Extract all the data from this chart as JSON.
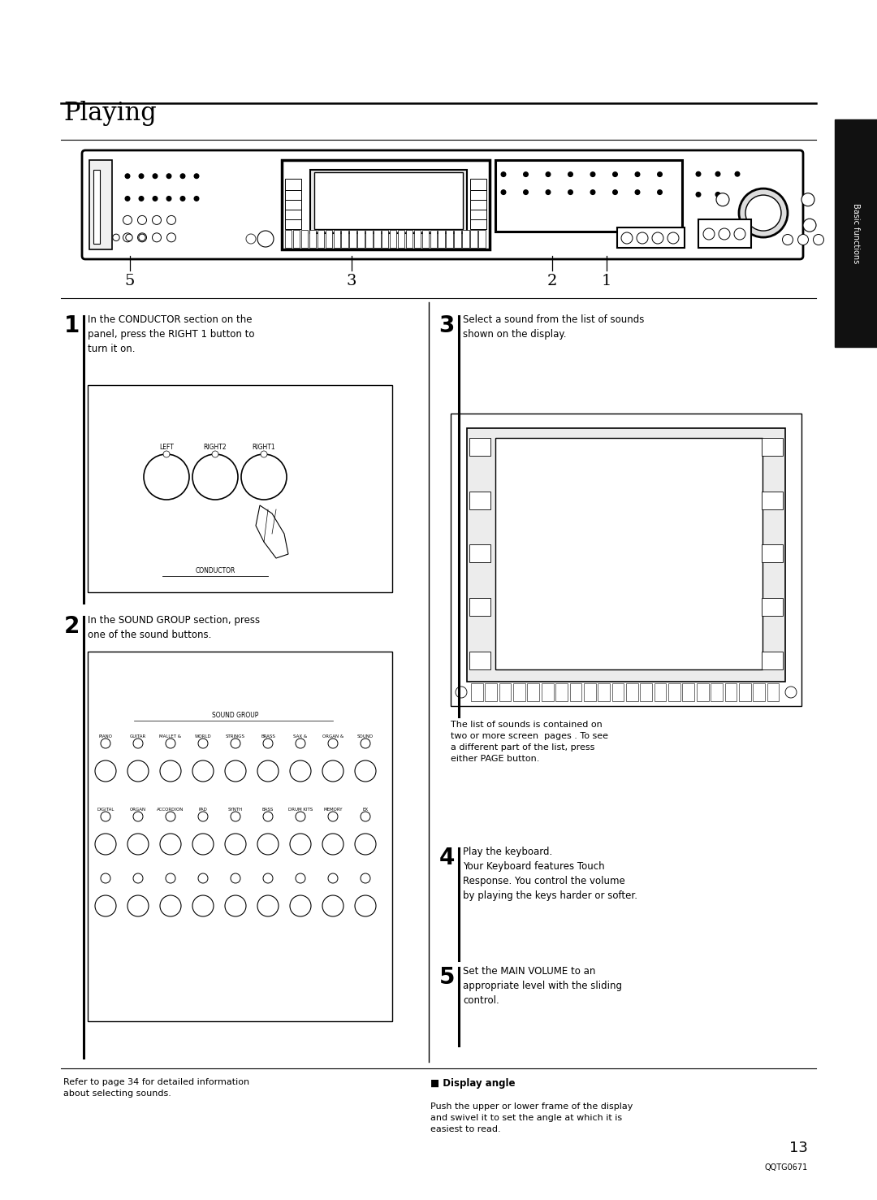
{
  "page_width": 10.8,
  "page_height": 14.77,
  "bg_color": "#ffffff",
  "title": "Playing",
  "sidebar_text": "Basic functions",
  "sidebar_bg": "#111111",
  "sidebar_text_color": "#ffffff",
  "step1_num": "1",
  "step1_text": "In the CONDUCTOR section on the\npanel, press the RIGHT 1 button to\nturn it on.",
  "step2_num": "2",
  "step2_text": "In the SOUND GROUP section, press\none of the sound buttons.",
  "step3_num": "3",
  "step3_text": "Select a sound from the list of sounds\nshown on the display.",
  "step3_note": "The list of sounds is contained on\ntwo or more screen  pages . To see\na different part of the list, press\neither PAGE button.",
  "step4_num": "4",
  "step4_text": "Play the keyboard.\nYour Keyboard features Touch\nResponse. You control the volume\nby playing the keys harder or softer.",
  "step5_num": "5",
  "step5_text": "Set the MAIN VOLUME to an\nappropriate level with the sliding\ncontrol.",
  "footer_left": "Refer to page 34 for detailed information\nabout selecting sounds.",
  "footer_right_title": "■ Display angle",
  "footer_right_body": "Push the upper or lower frame of the display\nand swivel it to set the angle at which it is\neasiest to read.",
  "page_num": "13",
  "page_code": "QQTG0671"
}
